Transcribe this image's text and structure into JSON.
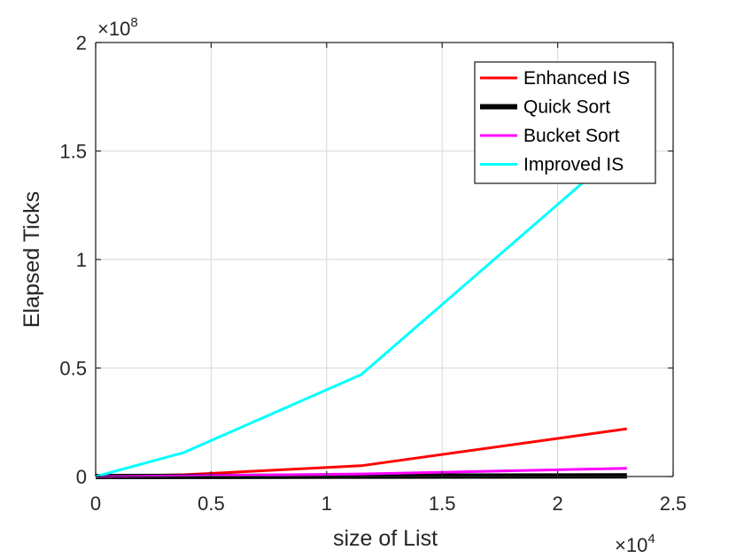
{
  "chart_data": {
    "type": "line",
    "xlabel": "size of List",
    "ylabel": "Elapsed Ticks",
    "xlim": [
      0,
      25000
    ],
    "ylim": [
      0,
      200000000
    ],
    "x_ticks": [
      0,
      5000,
      10000,
      15000,
      20000,
      25000
    ],
    "x_tick_labels": [
      "0",
      "0.5",
      "1",
      "1.5",
      "2",
      "2.5"
    ],
    "y_ticks": [
      0,
      50000000,
      100000000,
      150000000,
      200000000
    ],
    "y_tick_labels": [
      "0",
      "0.5",
      "1",
      "1.5",
      "2"
    ],
    "x_exponent": {
      "base": "×10",
      "power": "4"
    },
    "y_exponent": {
      "base": "×10",
      "power": "8"
    },
    "grid": true,
    "legend_position": "top-right",
    "series": [
      {
        "name": "Enhanced IS",
        "color": "#ff0000",
        "x": [
          0,
          3800,
          11500,
          23000
        ],
        "y": [
          0,
          800000,
          5000000,
          22000000
        ]
      },
      {
        "name": "Quick Sort",
        "color": "#000000",
        "x": [
          0,
          3800,
          11500,
          23000
        ],
        "y": [
          0,
          50000,
          150000,
          300000
        ]
      },
      {
        "name": "Bucket Sort",
        "color": "#ff00ff",
        "x": [
          0,
          3800,
          11500,
          23000
        ],
        "y": [
          0,
          300000,
          1200000,
          3800000
        ]
      },
      {
        "name": "Improved IS",
        "color": "#00ffff",
        "x": [
          0,
          3800,
          11500,
          23000
        ],
        "y": [
          0,
          11000000,
          47000000,
          153000000
        ]
      }
    ]
  }
}
